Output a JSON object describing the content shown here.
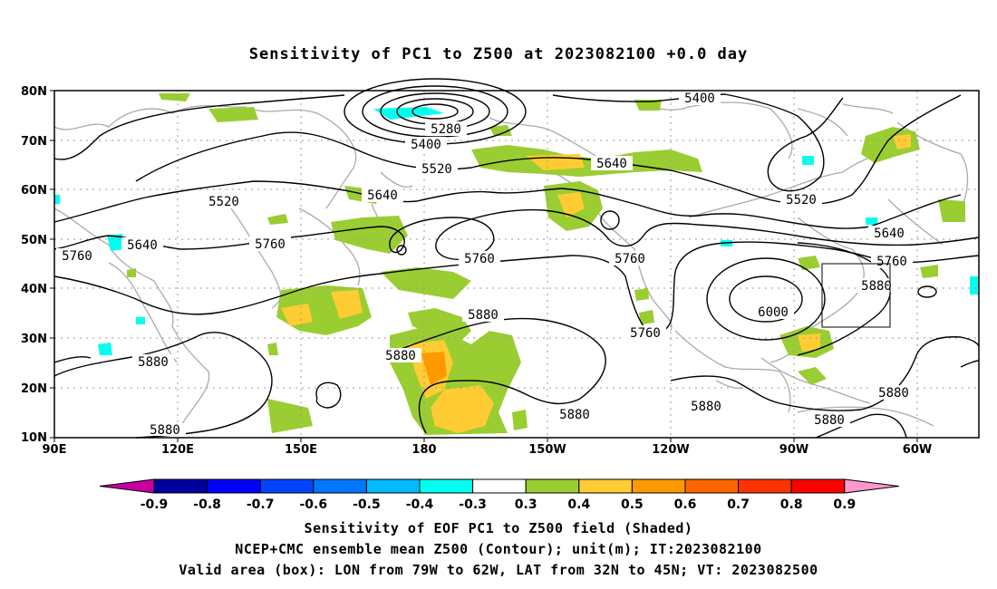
{
  "title": "Sensitivity of PC1 to Z500 at 2023082100 +0.0 day",
  "axes": {
    "lat_labels": [
      "80N",
      "70N",
      "60N",
      "50N",
      "40N",
      "30N",
      "20N",
      "10N"
    ],
    "lon_labels": [
      "90E",
      "120E",
      "150E",
      "180",
      "150W",
      "120W",
      "90W",
      "60W"
    ]
  },
  "contour_labels": [
    "5280",
    "5400",
    "5400",
    "5520",
    "5520",
    "5520",
    "5640",
    "5640",
    "5640",
    "5640",
    "5760",
    "5760",
    "5760",
    "5760",
    "5760",
    "5760",
    "5880",
    "5880",
    "5880",
    "5880",
    "5880",
    "5880",
    "5880",
    "5880",
    "5880",
    "6000"
  ],
  "colorbar": {
    "labels": [
      "-0.9",
      "-0.8",
      "-0.7",
      "-0.6",
      "-0.5",
      "-0.4",
      "-0.3",
      "0.3",
      "0.4",
      "0.5",
      "0.6",
      "0.7",
      "0.8",
      "0.9"
    ],
    "colors": [
      "#0000a0",
      "#0000ff",
      "#0044ff",
      "#0077ff",
      "#00bbff",
      "#00ffee",
      "#ffffff",
      "#9acd32",
      "#ffcc33",
      "#ff9900",
      "#ff6600",
      "#ff3300",
      "#ff0000"
    ],
    "under_color": "#c800a0",
    "over_color": "#ff99cc"
  },
  "footer": {
    "line1": "Sensitivity of EOF PC1 to Z500 field (Shaded)",
    "line2": "NCEP+CMC ensemble mean Z500 (Contour); unit(m); IT:2023082100",
    "line3": "Valid area (box): LON from 79W to 62W, LAT from 32N to 45N; VT: 2023082500"
  }
}
